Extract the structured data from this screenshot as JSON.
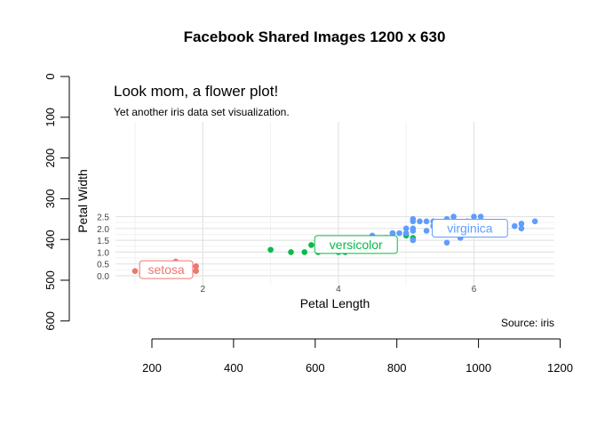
{
  "title": "Facebook Shared Images 1200 x 630",
  "chart_data": {
    "type": "scatter",
    "title": "Look mom, a flower plot!",
    "subtitle": "Yet another iris data set visualization.",
    "xlabel": "Petal Length",
    "ylabel": "Petal Width",
    "caption": "Source: iris",
    "xlim": [
      1,
      6.9
    ],
    "ylim": [
      0.1,
      2.5
    ],
    "x_ticks": [
      2,
      4,
      6
    ],
    "y_ticks": [
      "0.0",
      "0.5",
      "1.0",
      "1.5",
      "2.0",
      "2.5"
    ],
    "grid": true,
    "legend": "direct labels",
    "series": [
      {
        "name": "setosa",
        "color": "#F07670",
        "points": [
          [
            1.0,
            0.2
          ],
          [
            1.1,
            0.1
          ],
          [
            1.2,
            0.2
          ],
          [
            1.3,
            0.2
          ],
          [
            1.3,
            0.3
          ],
          [
            1.4,
            0.1
          ],
          [
            1.4,
            0.2
          ],
          [
            1.4,
            0.3
          ],
          [
            1.5,
            0.1
          ],
          [
            1.5,
            0.2
          ],
          [
            1.5,
            0.4
          ],
          [
            1.6,
            0.2
          ],
          [
            1.6,
            0.4
          ],
          [
            1.6,
            0.6
          ],
          [
            1.7,
            0.3
          ],
          [
            1.7,
            0.5
          ],
          [
            1.9,
            0.2
          ],
          [
            1.9,
            0.4
          ]
        ]
      },
      {
        "name": "versicolor",
        "color": "#0CB94A",
        "points": [
          [
            3.0,
            1.1
          ],
          [
            3.3,
            1.0
          ],
          [
            3.5,
            1.0
          ],
          [
            3.6,
            1.3
          ],
          [
            3.7,
            1.0
          ],
          [
            3.8,
            1.1
          ],
          [
            3.9,
            1.1
          ],
          [
            3.9,
            1.2
          ],
          [
            4.0,
            1.0
          ],
          [
            4.1,
            1.0
          ],
          [
            4.2,
            1.5
          ],
          [
            4.5,
            1.5
          ],
          [
            4.5,
            1.6
          ],
          [
            4.6,
            1.5
          ],
          [
            4.7,
            1.5
          ],
          [
            4.7,
            1.6
          ],
          [
            4.8,
            1.4
          ],
          [
            4.8,
            1.8
          ],
          [
            5.0,
            1.7
          ],
          [
            5.1,
            1.6
          ]
        ]
      },
      {
        "name": "virginica",
        "color": "#619CFF",
        "points": [
          [
            4.5,
            1.7
          ],
          [
            4.8,
            1.8
          ],
          [
            4.9,
            1.8
          ],
          [
            5.0,
            2.0
          ],
          [
            5.0,
            1.8
          ],
          [
            5.1,
            1.9
          ],
          [
            5.1,
            2.0
          ],
          [
            5.1,
            2.3
          ],
          [
            5.1,
            2.4
          ],
          [
            5.1,
            1.5
          ],
          [
            5.2,
            2.3
          ],
          [
            5.3,
            2.3
          ],
          [
            5.3,
            1.9
          ],
          [
            5.4,
            2.3
          ],
          [
            5.4,
            2.1
          ],
          [
            5.5,
            1.8
          ],
          [
            5.5,
            2.1
          ],
          [
            5.6,
            2.4
          ],
          [
            5.6,
            1.4
          ],
          [
            5.6,
            1.8
          ],
          [
            5.7,
            2.3
          ],
          [
            5.7,
            2.5
          ],
          [
            5.8,
            2.2
          ],
          [
            5.8,
            1.6
          ],
          [
            5.9,
            2.1
          ],
          [
            5.9,
            2.3
          ],
          [
            6.0,
            2.5
          ],
          [
            6.0,
            1.8
          ],
          [
            6.1,
            2.3
          ],
          [
            6.1,
            2.5
          ],
          [
            6.3,
            1.8
          ],
          [
            6.4,
            2.0
          ],
          [
            6.6,
            2.1
          ],
          [
            6.7,
            2.2
          ],
          [
            6.7,
            2.0
          ],
          [
            6.9,
            2.3
          ]
        ]
      }
    ],
    "labels": [
      {
        "text": "setosa",
        "x": 1.46,
        "y": 0.26
      },
      {
        "text": "versicolor",
        "x": 4.26,
        "y": 1.32
      },
      {
        "text": "virginica",
        "x": 5.94,
        "y": 2.01
      }
    ]
  },
  "canvas_axes": {
    "x_ticks": [
      200,
      400,
      600,
      800,
      1000,
      1200
    ],
    "y_ticks": [
      0,
      100,
      200,
      300,
      400,
      500,
      600
    ]
  }
}
